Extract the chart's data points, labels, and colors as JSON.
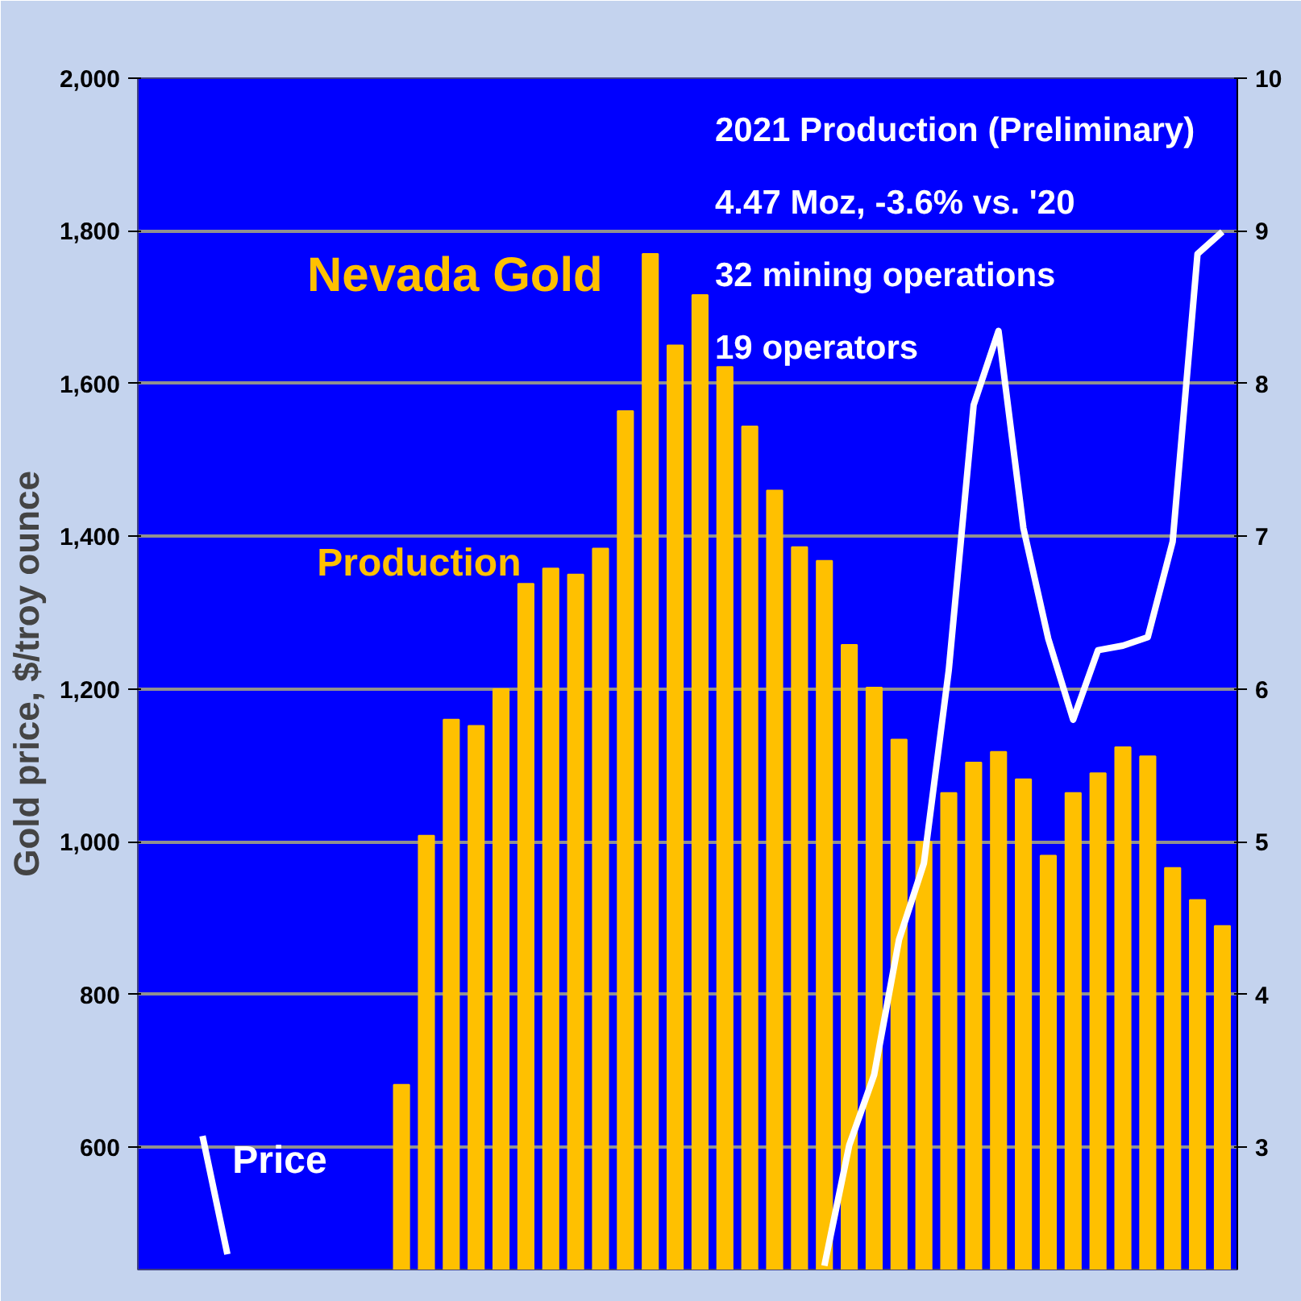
{
  "chart_data": {
    "type": "bar",
    "title": "Nevada Gold",
    "ylabel": "Gold price, $/troy ounce",
    "annotations": [
      "2021 Production (Preliminary)",
      "4.47 Moz, -3.6% vs. '20",
      "32 mining operations",
      "19 operators"
    ],
    "categories": [
      null,
      null,
      null,
      null,
      null,
      null,
      null,
      null,
      null,
      null,
      null,
      null,
      null,
      null,
      null,
      null,
      null,
      null,
      null,
      null,
      null,
      null,
      null,
      null,
      null,
      null,
      null,
      null,
      null,
      null,
      null,
      null,
      null,
      null,
      null,
      null,
      null,
      null,
      null,
      null,
      null,
      null,
      null,
      null
    ],
    "series": [
      {
        "name": "Production",
        "axis": "y2",
        "color": "#ffc000",
        "values": [
          null,
          null,
          null,
          null,
          null,
          null,
          null,
          null,
          null,
          null,
          3.41,
          5.04,
          5.8,
          5.76,
          6.0,
          6.69,
          6.79,
          6.75,
          6.92,
          7.82,
          8.85,
          8.25,
          8.58,
          8.11,
          7.72,
          7.3,
          6.93,
          6.84,
          6.29,
          6.01,
          5.67,
          5.0,
          5.32,
          5.52,
          5.59,
          5.41,
          4.91,
          5.32,
          5.45,
          5.62,
          5.56,
          4.83,
          4.62,
          4.45
        ]
      },
      {
        "name": "Price",
        "type": "line",
        "color": "#ffffff",
        "values": [
          null,
          null,
          615,
          460,
          null,
          null,
          null,
          null,
          null,
          null,
          null,
          null,
          null,
          null,
          null,
          null,
          null,
          null,
          null,
          null,
          null,
          null,
          null,
          null,
          null,
          null,
          null,
          445,
          603,
          695,
          872,
          972,
          1225,
          1572,
          1669,
          1411,
          1266,
          1160,
          1251,
          1257,
          1268,
          1393,
          1770,
          1799
        ]
      }
    ],
    "ylim": [
      440,
      2000
    ],
    "yticks": [
      {
        "value": 600,
        "label": "600"
      },
      {
        "value": 800,
        "label": "800"
      },
      {
        "value": 1000,
        "label": "1,000"
      },
      {
        "value": 1200,
        "label": "1,200"
      },
      {
        "value": 1400,
        "label": "1,400"
      },
      {
        "value": 1600,
        "label": "1,600"
      },
      {
        "value": 1800,
        "label": "1,800"
      },
      {
        "value": 2000,
        "label": "2,000"
      }
    ],
    "y2lim": [
      2.2,
      10
    ],
    "y2ticks": [
      3,
      4,
      5,
      6,
      7,
      8,
      9,
      10
    ],
    "grid": "y",
    "legend": false,
    "tick_labels": "y"
  }
}
